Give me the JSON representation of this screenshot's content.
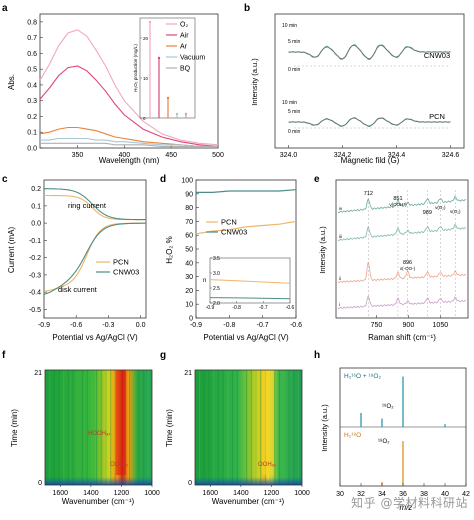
{
  "panels": {
    "a": {
      "label": "a",
      "ylabel": "Abs.",
      "xlabel": "Wavelength (nm)",
      "xticks": [
        "350",
        "400",
        "450",
        "500"
      ],
      "yticks": [
        "0.0",
        "0.1",
        "0.2",
        "0.3",
        "0.4",
        "0.5",
        "0.6",
        "0.7",
        "0.8"
      ],
      "legend": [
        "O₂",
        "Air",
        "Ar",
        "Vacuum",
        "BQ"
      ],
      "inset": {
        "ylabel": "H₂O₂ production (mg/L)",
        "yticks": [
          "0",
          "10",
          "20"
        ]
      }
    },
    "b": {
      "label": "b",
      "ylabel": "Intensity (a.u.)",
      "xlabel": "Magnetic fild (G)",
      "xticks": [
        "324.0",
        "324.2",
        "324.4",
        "324.6"
      ],
      "labels": {
        "top": "CNW03",
        "bottom": "PCN",
        "t10": "10 min",
        "t5": "5 min",
        "t0": "0 min"
      }
    },
    "c": {
      "label": "c",
      "ylabel": "Current (mA)",
      "xlabel": "Potential vs Ag/AgCl (V)",
      "xticks": [
        "-0.9",
        "-0.6",
        "-0.3",
        "0.0"
      ],
      "yticks": [
        "-0.5",
        "-0.4",
        "-0.3",
        "-0.2",
        "-0.1",
        "0.0",
        "0.1",
        "0.2"
      ],
      "ring": "ring current",
      "disk": "disk current",
      "legend": [
        "PCN",
        "CNW03"
      ]
    },
    "d": {
      "label": "d",
      "ylabel": "H₂O₂ %",
      "xlabel": "Potential vs Ag/AgCl (V)",
      "xticks": [
        "-0.9",
        "-0.8",
        "-0.7",
        "-0.6"
      ],
      "yticks": [
        "0",
        "10",
        "20",
        "30",
        "40",
        "50",
        "60",
        "70",
        "80",
        "90",
        "100"
      ],
      "legend": [
        "PCN",
        "CNW03"
      ],
      "inset": {
        "ylabel": "n",
        "xticks": [
          "-0.9",
          "-0.8",
          "-0.7",
          "-0.6"
        ],
        "yticks": [
          "2.0",
          "2.5",
          "3.0",
          "3.5"
        ]
      }
    },
    "e": {
      "label": "e",
      "ylabel": "Intensity (a.u.)",
      "xlabel": "Raman shift (cm⁻¹)",
      "xticks": [
        "750",
        "900",
        "1050"
      ],
      "peaks": [
        "712",
        "851",
        "989",
        "896"
      ],
      "ann": [
        "ν(OOH*)",
        "ν(O₂)",
        "ν(O₂)",
        "ν(-OO-)"
      ],
      "traces": [
        "iv",
        "iii",
        "ii",
        "i"
      ]
    },
    "f": {
      "label": "f",
      "ylabel": "Time (min)",
      "xlabel": "Wavenumber (cm⁻¹)",
      "xticks": [
        "1600",
        "1400",
        "1200",
        "1000"
      ],
      "yticks": [
        "0",
        "21"
      ],
      "ann": [
        "HOOHₐₛ",
        "OOHₐₛ"
      ]
    },
    "g": {
      "label": "g",
      "ylabel": "Time (min)",
      "xlabel": "Wavenumber (cm⁻¹)",
      "xticks": [
        "1600",
        "1400",
        "1200",
        "1000"
      ],
      "yticks": [
        "0",
        "21"
      ],
      "ann": [
        "OOHₐₛ"
      ]
    },
    "h": {
      "label": "h",
      "ylabel": "Intensity (a.u.)",
      "xlabel": "m/z",
      "xticks": [
        "30",
        "32",
        "34",
        "36",
        "38",
        "40",
        "42"
      ],
      "top": "H₂¹⁶O + ¹⁸O₂",
      "bottom": "H₂¹⁸O",
      "peak_top": "¹⁸O₂",
      "peak_bottom": "¹⁸O₂"
    }
  },
  "watermark": "知乎 @学材料科研站",
  "colors": {
    "O2": "#f4a7b9",
    "Air": "#e0457b",
    "Ar": "#e8823a",
    "Vacuum": "#a8c6d8",
    "BQ": "#b0b0b0",
    "PCN": "#f0b56a",
    "CNW03": "#4e8d86",
    "exp": "#5ba3a0",
    "fit": "#6d6d6d",
    "h_top": "#3b9fb5",
    "h_bottom": "#e09a2a"
  },
  "chart_data": [
    {
      "type": "line",
      "panel": "a",
      "xlabel": "Wavelength (nm)",
      "ylabel": "Abs.",
      "xlim": [
        310,
        500
      ],
      "ylim": [
        0.0,
        0.85
      ],
      "x": [
        310,
        320,
        330,
        340,
        350,
        360,
        370,
        380,
        390,
        400,
        420,
        440,
        460,
        480,
        500
      ],
      "series": [
        {
          "name": "O₂",
          "values": [
            0.43,
            0.53,
            0.65,
            0.73,
            0.75,
            0.71,
            0.62,
            0.52,
            0.4,
            0.3,
            0.17,
            0.09,
            0.05,
            0.03,
            0.02
          ]
        },
        {
          "name": "Air",
          "values": [
            0.31,
            0.38,
            0.46,
            0.51,
            0.52,
            0.49,
            0.43,
            0.36,
            0.28,
            0.21,
            0.12,
            0.07,
            0.04,
            0.02,
            0.01
          ]
        },
        {
          "name": "Ar",
          "values": [
            0.09,
            0.1,
            0.12,
            0.13,
            0.13,
            0.12,
            0.11,
            0.09,
            0.07,
            0.06,
            0.04,
            0.03,
            0.02,
            0.01,
            0.01
          ]
        },
        {
          "name": "Vacuum",
          "values": [
            0.05,
            0.05,
            0.06,
            0.06,
            0.06,
            0.06,
            0.05,
            0.05,
            0.04,
            0.04,
            0.03,
            0.02,
            0.02,
            0.01,
            0.01
          ]
        },
        {
          "name": "BQ",
          "values": [
            0.03,
            0.03,
            0.03,
            0.03,
            0.03,
            0.03,
            0.03,
            0.03,
            0.02,
            0.02,
            0.02,
            0.01,
            0.01,
            0.01,
            0.01
          ]
        }
      ]
    },
    {
      "type": "bar",
      "panel": "a-inset",
      "categories": [
        "O₂",
        "Air",
        "Ar",
        "Vacuum",
        "BQ"
      ],
      "values": [
        24,
        15,
        5,
        1,
        1
      ],
      "ylabel": "H₂O₂ production (mg/L)",
      "ylim": [
        0,
        25
      ]
    },
    {
      "type": "line",
      "panel": "d",
      "xlabel": "Potential vs Ag/AgCl (V)",
      "ylabel": "H₂O₂ %",
      "xlim": [
        -0.9,
        -0.6
      ],
      "ylim": [
        0,
        100
      ],
      "x": [
        -0.9,
        -0.85,
        -0.8,
        -0.75,
        -0.7,
        -0.65,
        -0.6
      ],
      "series": [
        {
          "name": "PCN",
          "values": [
            61,
            63,
            64,
            66,
            67,
            68,
            70
          ]
        },
        {
          "name": "CNW03",
          "values": [
            91,
            91,
            92,
            92,
            92,
            92,
            93
          ]
        }
      ]
    },
    {
      "type": "line",
      "panel": "d-inset",
      "xlim": [
        -0.9,
        -0.6
      ],
      "ylim": [
        2.0,
        3.5
      ],
      "x": [
        -0.9,
        -0.8,
        -0.7,
        -0.6
      ],
      "series": [
        {
          "name": "PCN",
          "values": [
            2.78,
            2.74,
            2.7,
            2.66
          ]
        },
        {
          "name": "CNW03",
          "values": [
            2.18,
            2.17,
            2.16,
            2.14
          ]
        }
      ]
    },
    {
      "type": "bar",
      "panel": "h",
      "xlabel": "m/z",
      "ylabel": "Intensity (a.u.)",
      "xlim": [
        30,
        42
      ],
      "series": [
        {
          "name": "H₂¹⁶O + ¹⁸O₂",
          "x": [
            32,
            34,
            36,
            40
          ],
          "values": [
            0.25,
            0.15,
            0.9,
            0.05
          ]
        },
        {
          "name": "H₂¹⁸O",
          "x": [
            34,
            36
          ],
          "values": [
            0.08,
            0.9
          ]
        }
      ]
    }
  ]
}
